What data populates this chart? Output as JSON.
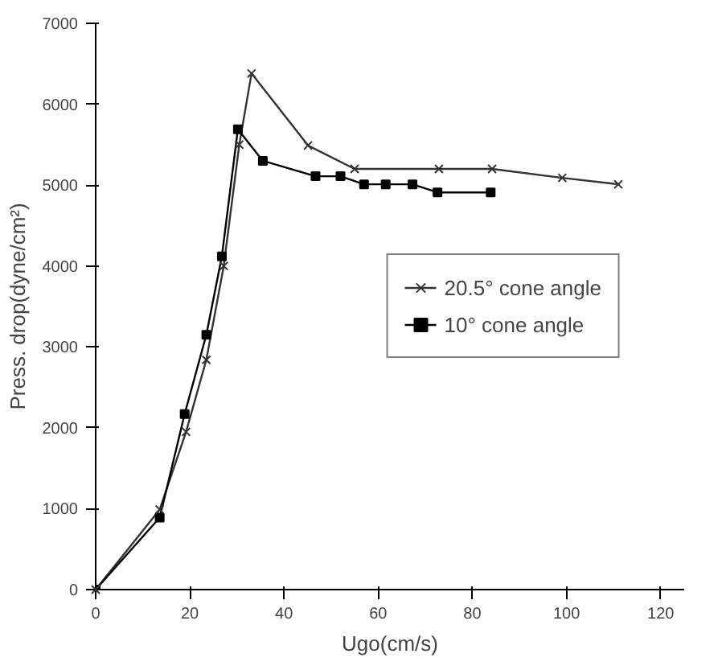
{
  "chart_data": {
    "type": "line",
    "xlabel": "Ugo(cm/s)",
    "ylabel": "Press. drop(dyne/cm²)",
    "xlim": [
      0,
      125
    ],
    "ylim": [
      0,
      7000
    ],
    "xticks": [
      0,
      20,
      40,
      60,
      80,
      100,
      120
    ],
    "yticks": [
      0,
      1000,
      2000,
      3000,
      4000,
      5000,
      6000,
      7000
    ],
    "grid": false,
    "legend": "right",
    "line_style": "solid",
    "series": [
      {
        "name": "20.5° cone angle",
        "color": "#333333",
        "marker": "cross",
        "x": [
          0,
          13.6,
          19.2,
          23.5,
          27.2,
          30.5,
          33.1,
          45.1,
          55,
          72.9,
          84.2,
          99.1,
          111
        ],
        "values": [
          0,
          990,
          1950,
          2840,
          4000,
          5500,
          6380,
          5490,
          5200,
          5200,
          5200,
          5090,
          5010
        ]
      },
      {
        "name": "10° cone angle",
        "color": "#000000",
        "marker": "square",
        "x": [
          0,
          13.6,
          18.9,
          23.5,
          26.8,
          30.2,
          35.5,
          46.7,
          52,
          57,
          61.6,
          67.3,
          72.6,
          83.9
        ],
        "values": [
          0,
          890,
          2170,
          3150,
          4120,
          5690,
          5300,
          5110,
          5110,
          5010,
          5010,
          5010,
          4910,
          4910
        ]
      }
    ]
  }
}
